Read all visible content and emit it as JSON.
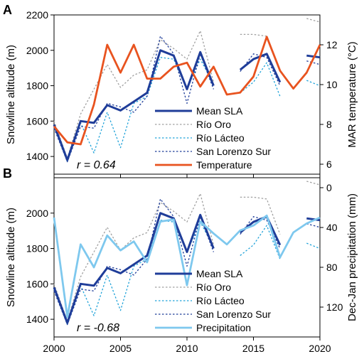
{
  "chart_data": [
    {
      "panel": "A",
      "type": "line",
      "ylabel": "Snowline altitude (m)",
      "y2label": "MAR  temperature (°C)",
      "ylim": [
        1300,
        2200
      ],
      "y2lim": [
        5.5,
        13.5
      ],
      "xlim": [
        2000,
        2020
      ],
      "xticks": [
        2000,
        2005,
        2010,
        2015,
        2020
      ],
      "yticks": [
        1400,
        1600,
        1800,
        2000,
        2200
      ],
      "y2ticks": [
        6,
        8,
        10,
        12
      ],
      "annotation": "r = 0.64",
      "legend_position": "lower-right",
      "series": [
        {
          "name": "Mean SLA",
          "axis": "left",
          "color": "#1f3d99",
          "style": "solid",
          "width": 3,
          "segments": [
            [
              [
                2000,
                1580
              ],
              [
                2001,
                1380
              ],
              [
                2002,
                1600
              ],
              [
                2003,
                1590
              ],
              [
                2004,
                1690
              ],
              [
                2005,
                1660
              ],
              [
                2006,
                1710
              ],
              [
                2007,
                1760
              ],
              [
                2008,
                2000
              ],
              [
                2009,
                1970
              ],
              [
                2010,
                1780
              ],
              [
                2011,
                1990
              ],
              [
                2012,
                1800
              ]
            ],
            [
              [
                2014,
                1890
              ],
              [
                2015,
                1950
              ],
              [
                2016,
                1980
              ],
              [
                2017,
                1820
              ]
            ],
            [
              [
                2019,
                1970
              ],
              [
                2020,
                1960
              ]
            ]
          ]
        },
        {
          "name": "Río Oro",
          "axis": "left",
          "color": "#a0a0a0",
          "style": "dotted",
          "width": 1.3,
          "segments": [
            [
              [
                2000,
                1600
              ],
              [
                2001,
                1390
              ],
              [
                2002,
                1640
              ],
              [
                2003,
                1780
              ],
              [
                2004,
                1920
              ],
              [
                2005,
                1790
              ],
              [
                2006,
                1860
              ],
              [
                2007,
                1890
              ],
              [
                2008,
                2060
              ],
              [
                2009,
                2010
              ],
              [
                2010,
                1950
              ],
              [
                2011,
                2110
              ],
              [
                2012,
                1820
              ]
            ],
            [
              [
                2014,
                2090
              ],
              [
                2015,
                2090
              ],
              [
                2016,
                2080
              ],
              [
                2017,
                1880
              ]
            ],
            [
              [
                2019,
                2180
              ],
              [
                2020,
                2160
              ]
            ]
          ]
        },
        {
          "name": "Río Lácteo",
          "axis": "left",
          "color": "#21a3d9",
          "style": "dotted",
          "width": 1.3,
          "segments": [
            [
              [
                2000,
                1570
              ],
              [
                2001,
                1370
              ],
              [
                2002,
                1590
              ],
              [
                2003,
                1420
              ],
              [
                2004,
                1650
              ],
              [
                2005,
                1450
              ],
              [
                2006,
                1700
              ],
              [
                2007,
                1740
              ],
              [
                2008,
                1960
              ],
              [
                2009,
                1950
              ],
              [
                2010,
                1780
              ],
              [
                2011,
                1950
              ],
              [
                2012,
                1810
              ]
            ],
            [
              [
                2014,
                1760
              ],
              [
                2015,
                1820
              ],
              [
                2016,
                1930
              ],
              [
                2017,
                1740
              ]
            ],
            [
              [
                2019,
                1830
              ],
              [
                2020,
                1800
              ]
            ]
          ]
        },
        {
          "name": "San Lorenzo Sur",
          "axis": "left",
          "color": "#1f3d99",
          "style": "dotted",
          "width": 1.3,
          "segments": [
            [
              [
                2000,
                1560
              ],
              [
                2001,
                1370
              ],
              [
                2002,
                1570
              ],
              [
                2003,
                1560
              ],
              [
                2004,
                1700
              ],
              [
                2005,
                1680
              ],
              [
                2006,
                1650
              ],
              [
                2007,
                1740
              ],
              [
                2008,
                2080
              ],
              [
                2009,
                1980
              ],
              [
                2010,
                1700
              ],
              [
                2011,
                1980
              ],
              [
                2012,
                1780
              ]
            ],
            [
              [
                2014,
                1880
              ],
              [
                2015,
                1980
              ],
              [
                2016,
                1960
              ],
              [
                2017,
                1800
              ]
            ],
            [
              [
                2019,
                1940
              ],
              [
                2020,
                1920
              ]
            ]
          ]
        },
        {
          "name": "Temperature",
          "axis": "right",
          "color": "#e8531f",
          "style": "solid",
          "width": 2.8,
          "segments": [
            [
              [
                2000,
                7.9
              ],
              [
                2001,
                7.1
              ],
              [
                2002,
                7.0
              ],
              [
                2003,
                9.0
              ],
              [
                2004,
                12.0
              ],
              [
                2005,
                10.6
              ],
              [
                2006,
                12.0
              ],
              [
                2007,
                10.3
              ],
              [
                2008,
                10.3
              ],
              [
                2009,
                10.9
              ],
              [
                2010,
                11.1
              ],
              [
                2011,
                9.9
              ],
              [
                2012,
                10.9
              ],
              [
                2013,
                9.5
              ],
              [
                2014,
                9.6
              ],
              [
                2015,
                10.4
              ],
              [
                2016,
                12.4
              ],
              [
                2017,
                10.7
              ],
              [
                2018,
                9.8
              ],
              [
                2019,
                10.6
              ],
              [
                2020,
                12.0
              ]
            ]
          ]
        }
      ]
    },
    {
      "panel": "B",
      "type": "line",
      "ylabel": "Snowline altitude (m)",
      "y2label": "Dec-Jan precipitation (mm)",
      "ylim": [
        1300,
        2200
      ],
      "y2lim": [
        -10,
        150
      ],
      "y2_inverted": true,
      "xlim": [
        2000,
        2020
      ],
      "xticks": [
        2000,
        2005,
        2010,
        2015,
        2020
      ],
      "yticks": [
        1400,
        1600,
        1800,
        2000
      ],
      "y2ticks": [
        0,
        40,
        80,
        120
      ],
      "annotation": "r = -0.68",
      "legend_position": "lower-right",
      "series": [
        {
          "name": "Mean SLA",
          "axis": "left",
          "color": "#1f3d99",
          "style": "solid",
          "width": 3,
          "segments": [
            [
              [
                2000,
                1580
              ],
              [
                2001,
                1380
              ],
              [
                2002,
                1600
              ],
              [
                2003,
                1590
              ],
              [
                2004,
                1690
              ],
              [
                2005,
                1660
              ],
              [
                2006,
                1710
              ],
              [
                2007,
                1760
              ],
              [
                2008,
                2000
              ],
              [
                2009,
                1970
              ],
              [
                2010,
                1780
              ],
              [
                2011,
                1990
              ],
              [
                2012,
                1800
              ]
            ],
            [
              [
                2014,
                1890
              ],
              [
                2015,
                1950
              ],
              [
                2016,
                1980
              ],
              [
                2017,
                1820
              ]
            ],
            [
              [
                2019,
                1970
              ],
              [
                2020,
                1960
              ]
            ]
          ]
        },
        {
          "name": "Río Oro",
          "axis": "left",
          "color": "#a0a0a0",
          "style": "dotted",
          "width": 1.3,
          "segments": [
            [
              [
                2000,
                1600
              ],
              [
                2001,
                1390
              ],
              [
                2002,
                1640
              ],
              [
                2003,
                1780
              ],
              [
                2004,
                1920
              ],
              [
                2005,
                1790
              ],
              [
                2006,
                1860
              ],
              [
                2007,
                1890
              ],
              [
                2008,
                2060
              ],
              [
                2009,
                2010
              ],
              [
                2010,
                1950
              ],
              [
                2011,
                2110
              ],
              [
                2012,
                1820
              ]
            ],
            [
              [
                2014,
                2090
              ],
              [
                2015,
                2090
              ],
              [
                2016,
                2080
              ],
              [
                2017,
                1880
              ]
            ],
            [
              [
                2019,
                2180
              ],
              [
                2020,
                2160
              ]
            ]
          ]
        },
        {
          "name": "Río Lácteo",
          "axis": "left",
          "color": "#21a3d9",
          "style": "dotted",
          "width": 1.3,
          "segments": [
            [
              [
                2000,
                1570
              ],
              [
                2001,
                1370
              ],
              [
                2002,
                1590
              ],
              [
                2003,
                1420
              ],
              [
                2004,
                1650
              ],
              [
                2005,
                1450
              ],
              [
                2006,
                1700
              ],
              [
                2007,
                1740
              ],
              [
                2008,
                1960
              ],
              [
                2009,
                1950
              ],
              [
                2010,
                1780
              ],
              [
                2011,
                1950
              ],
              [
                2012,
                1810
              ]
            ],
            [
              [
                2014,
                1760
              ],
              [
                2015,
                1820
              ],
              [
                2016,
                1930
              ],
              [
                2017,
                1740
              ]
            ],
            [
              [
                2019,
                1830
              ],
              [
                2020,
                1800
              ]
            ]
          ]
        },
        {
          "name": "San Lorenzo Sur",
          "axis": "left",
          "color": "#1f3d99",
          "style": "dotted",
          "width": 1.3,
          "segments": [
            [
              [
                2000,
                1560
              ],
              [
                2001,
                1370
              ],
              [
                2002,
                1570
              ],
              [
                2003,
                1560
              ],
              [
                2004,
                1700
              ],
              [
                2005,
                1680
              ],
              [
                2006,
                1650
              ],
              [
                2007,
                1740
              ],
              [
                2008,
                2080
              ],
              [
                2009,
                1980
              ],
              [
                2010,
                1700
              ],
              [
                2011,
                1980
              ],
              [
                2012,
                1780
              ]
            ],
            [
              [
                2014,
                1880
              ],
              [
                2015,
                1980
              ],
              [
                2016,
                1960
              ],
              [
                2017,
                1800
              ]
            ],
            [
              [
                2019,
                1940
              ],
              [
                2020,
                1920
              ]
            ]
          ]
        },
        {
          "name": "Precipitation",
          "axis": "right",
          "color": "#7ec8ee",
          "style": "solid",
          "width": 2.8,
          "segments": [
            [
              [
                2000,
                30
              ],
              [
                2001,
                130
              ],
              [
                2002,
                57
              ],
              [
                2003,
                80
              ],
              [
                2004,
                48
              ],
              [
                2005,
                63
              ],
              [
                2006,
                54
              ],
              [
                2007,
                75
              ],
              [
                2008,
                34
              ],
              [
                2009,
                32
              ],
              [
                2010,
                98
              ],
              [
                2011,
                34
              ],
              [
                2012,
                46
              ],
              [
                2013,
                57
              ],
              [
                2014,
                43
              ],
              [
                2015,
                38
              ],
              [
                2016,
                28
              ],
              [
                2017,
                70
              ],
              [
                2018,
                45
              ],
              [
                2019,
                36
              ],
              [
                2020,
                30
              ]
            ]
          ]
        }
      ]
    }
  ]
}
